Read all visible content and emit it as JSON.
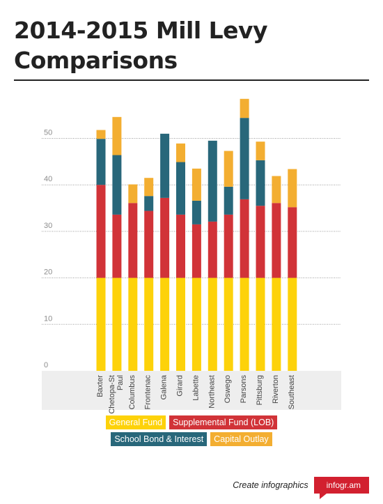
{
  "title_line1": "2014-2015 Mill Levy",
  "title_line2": "Comparisons",
  "chart_data": {
    "type": "bar",
    "stacked": true,
    "categories": [
      "Baxter",
      "Chetopa-St Paul",
      "Columbus",
      "Frontenac",
      "Galena",
      "Girard",
      "Labette",
      "Northeast",
      "Oswego",
      "Parsons",
      "Pittsburg",
      "Riverton",
      "Southeast"
    ],
    "category_labels": [
      [
        "Baxter"
      ],
      [
        "Chetopa-St",
        "Paul"
      ],
      [
        "Columbus"
      ],
      [
        "Frontenac"
      ],
      [
        "Galena"
      ],
      [
        "Girard"
      ],
      [
        "Labette"
      ],
      [
        "Northeast"
      ],
      [
        "Oswego"
      ],
      [
        "Parsons"
      ],
      [
        "Pittsburg"
      ],
      [
        "Riverton"
      ],
      [
        "Southeast"
      ]
    ],
    "series": [
      {
        "name": "General Fund",
        "color": "#fdd20a",
        "values": [
          20,
          20,
          20,
          20,
          20,
          20,
          20,
          20,
          20,
          20,
          20,
          20,
          20
        ]
      },
      {
        "name": "Supplemental Fund (LOB)",
        "color": "#d13338",
        "values": [
          20,
          13.6,
          16.1,
          14.4,
          17.2,
          13.6,
          11.5,
          12.1,
          13.6,
          16.9,
          15.5,
          16.1,
          15.2
        ]
      },
      {
        "name": "School Bond & Interest",
        "color": "#28677a",
        "values": [
          9.9,
          12.8,
          0,
          3.2,
          13.8,
          11.3,
          5.1,
          17.4,
          6,
          17.5,
          9.8,
          0,
          0
        ]
      },
      {
        "name": "Capital Outlay",
        "color": "#f3ae31",
        "values": [
          1.9,
          8.2,
          4,
          3.9,
          0,
          4,
          6.9,
          0,
          7.7,
          4.1,
          4,
          5.8,
          8.2
        ]
      }
    ],
    "yticks": [
      0,
      10,
      20,
      30,
      40,
      50
    ],
    "ylim": [
      0,
      58
    ],
    "grid": true,
    "legend_position": "bottom"
  },
  "footer": {
    "text": "Create infographics",
    "badge": "infogr.am"
  }
}
